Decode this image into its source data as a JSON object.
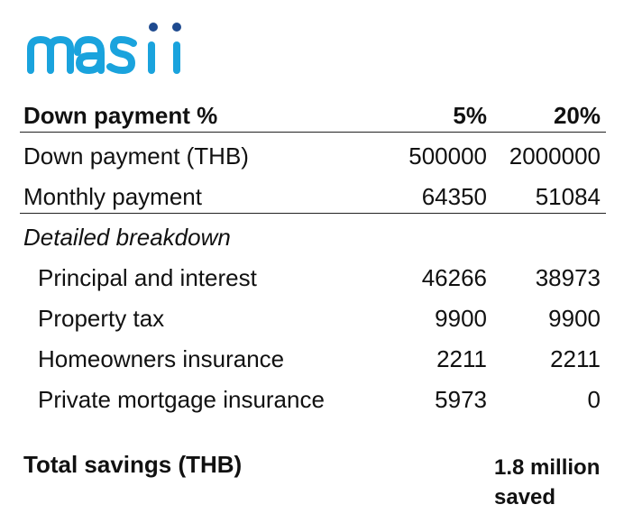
{
  "brand": {
    "logo_text": "masii",
    "color": "#1aa3dd",
    "dot_color": "#1e4a8f"
  },
  "table": {
    "header": {
      "label": "Down payment %",
      "c1": "5%",
      "c2": "20%"
    },
    "rows": [
      {
        "label": "Down payment (THB)",
        "c1": "500000",
        "c2": "2000000"
      },
      {
        "label": "Monthly payment",
        "c1": "64350",
        "c2": "51084"
      }
    ],
    "breakdown_title": "Detailed breakdown",
    "breakdown": [
      {
        "label": "Principal and interest",
        "c1": "46266",
        "c2": "38973"
      },
      {
        "label": "Property tax",
        "c1": "9900",
        "c2": "9900"
      },
      {
        "label": "Homeowners insurance",
        "c1": "2211",
        "c2": "2211"
      },
      {
        "label": "Private mortgage insurance",
        "c1": "5973",
        "c2": "0"
      }
    ]
  },
  "total": {
    "label": "Total savings (THB)",
    "value": "1.8 million saved"
  }
}
